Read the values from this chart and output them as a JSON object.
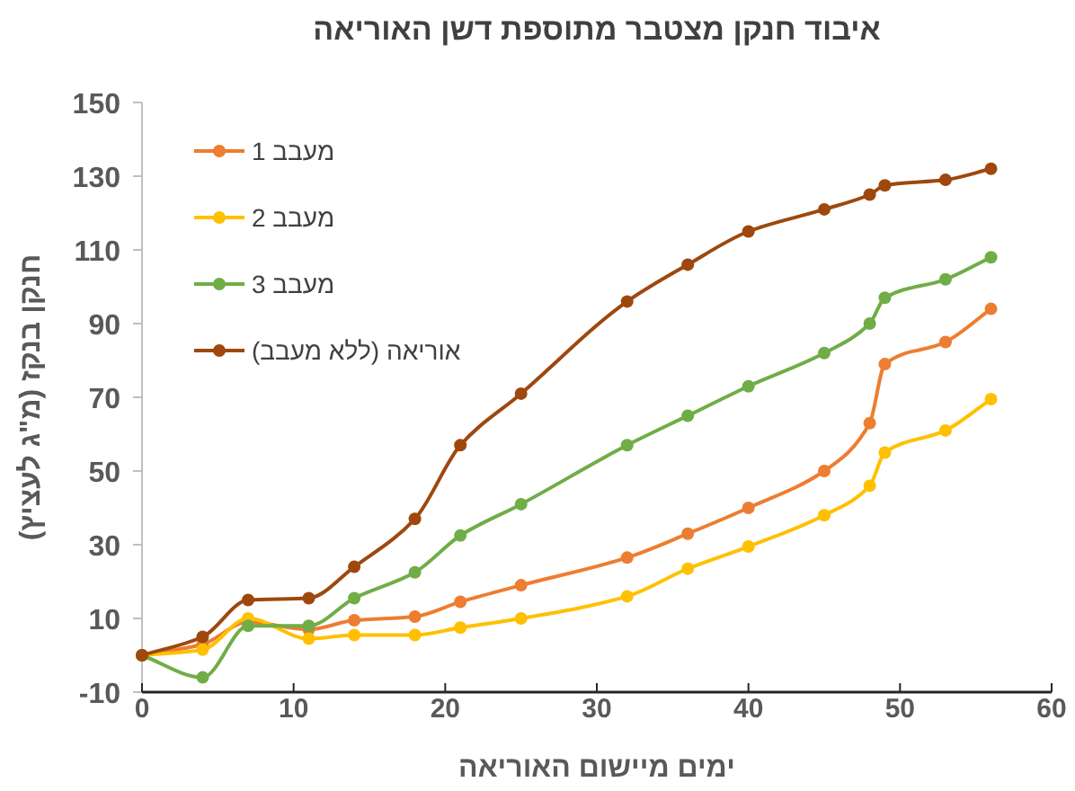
{
  "chart_data": {
    "type": "line",
    "title": "איבוד חנקן מצטבר מתוספת דשן האוריאה",
    "xlabel": "ימים מיישום האוריאה",
    "ylabel": "חנקן בנקז (מ\"ג לעציץ)",
    "x": [
      0,
      4,
      7,
      11,
      14,
      18,
      21,
      25,
      32,
      36,
      40,
      45,
      48,
      49,
      53,
      56
    ],
    "series": [
      {
        "name": "מעבב 1",
        "color": "#ed7d31",
        "values": [
          0,
          3,
          9,
          7,
          9.5,
          10.5,
          14.5,
          19,
          26.5,
          33,
          40,
          50,
          63,
          79,
          85,
          94
        ]
      },
      {
        "name": "מעבב 2",
        "color": "#ffc000",
        "values": [
          0,
          1.5,
          10,
          4.5,
          5.5,
          5.5,
          7.5,
          10,
          16,
          23.5,
          29.5,
          38,
          46,
          55,
          61,
          69.5
        ]
      },
      {
        "name": "מעבב 3",
        "color": "#70ad47",
        "values": [
          0,
          -6,
          8,
          8,
          15.5,
          22.5,
          32.5,
          41,
          57,
          65,
          73,
          82,
          90,
          97,
          102,
          108
        ]
      },
      {
        "name": "אוריאה (ללא מעבב)",
        "color": "#9e480e",
        "values": [
          0,
          5,
          15,
          15.5,
          24,
          37,
          57,
          71,
          96,
          106,
          115,
          121,
          125,
          127.5,
          129,
          132
        ]
      }
    ],
    "xlim": [
      0,
      60
    ],
    "xticks": [
      0,
      10,
      20,
      30,
      40,
      50,
      60
    ],
    "ylim": [
      -10,
      150
    ],
    "yticks": [
      -10,
      10,
      30,
      50,
      70,
      90,
      110,
      130,
      150
    ],
    "legend": "top left",
    "marker": "circle",
    "line_style": "solid",
    "grid": false
  }
}
